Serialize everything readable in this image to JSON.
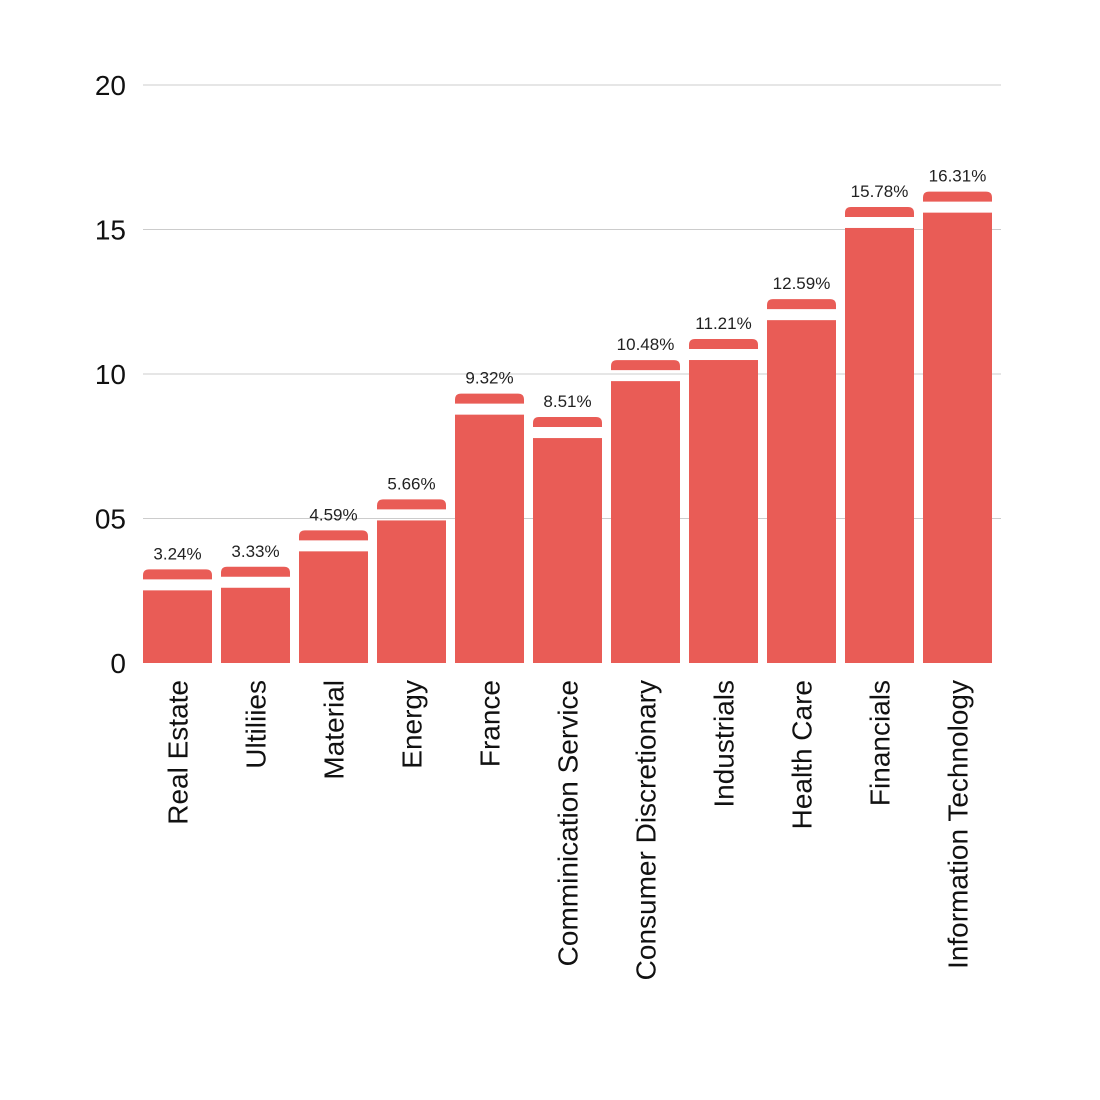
{
  "chart_data": {
    "type": "bar",
    "categories": [
      "Real Estate",
      "Ultiliies",
      "Material",
      "Energy",
      "France",
      "Comminication Service",
      "Consumer Discretionary",
      "Industrials",
      "Health Care",
      "Financials",
      "Information Technology"
    ],
    "values": [
      3.24,
      3.33,
      4.59,
      5.66,
      9.32,
      8.51,
      10.48,
      11.21,
      12.59,
      15.78,
      16.31
    ],
    "value_labels": [
      "3.24%",
      "3.33%",
      "4.59%",
      "5.66%",
      "9.32%",
      "8.51%",
      "10.48%",
      "11.21%",
      "12.59%",
      "15.78%",
      "16.31%"
    ],
    "ylim": [
      0,
      20
    ],
    "yticks": [
      0,
      5,
      10,
      15,
      20
    ],
    "ytick_labels": [
      "0",
      "05",
      "10",
      "15",
      "20"
    ],
    "grid": true,
    "bar_color": "#E95C56",
    "grid_color": "#cccccc"
  }
}
